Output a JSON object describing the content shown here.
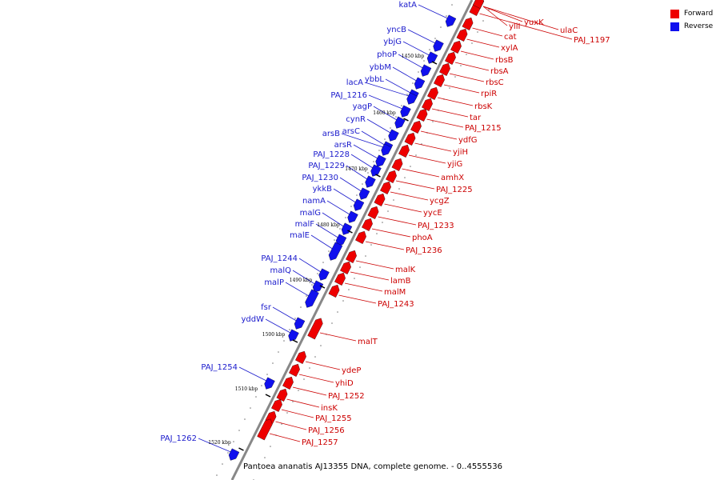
{
  "caption": "Pantoea ananatis AJ13355 DNA, complete genome. - 0..4555536",
  "legend": [
    {
      "label": "Forward",
      "color": "#ee0000"
    },
    {
      "label": "Reverse",
      "color": "#1010ee"
    }
  ],
  "colors": {
    "forward": "#ee0000",
    "reverse": "#1010ee",
    "backbone": "#888888",
    "label_forward": "#cc0000",
    "label_reverse": "#1a1acc"
  },
  "ticks": [
    "1450 kbp",
    "1460 kbp",
    "1470 kbp",
    "1480 kbp",
    "1490 kbp",
    "1500 kbp",
    "1510 kbp",
    "1520 kbp"
  ],
  "forward_genes": [
    "yuxK",
    "ulaC",
    "PAJ_1197",
    "yliI",
    "cat",
    "xylA",
    "rbsB",
    "rbsA",
    "rbsC",
    "rpiR",
    "rbsK",
    "tar",
    "PAJ_1215",
    "ydfG",
    "yjiH",
    "yjiG",
    "amhX",
    "PAJ_1225",
    "ycgZ",
    "yycE",
    "PAJ_1233",
    "phoA",
    "PAJ_1236",
    "malK",
    "lamB",
    "malM",
    "PAJ_1243",
    "malT",
    "ydeP",
    "yhiD",
    "PAJ_1252",
    "insK",
    "PAJ_1255",
    "PAJ_1256",
    "PAJ_1257"
  ],
  "reverse_genes": [
    "katA",
    "yncB",
    "ybjG",
    "phoP",
    "ybbM",
    "ybbL",
    "lacA",
    "PAJ_1216",
    "yagP",
    "cynR",
    "arsC",
    "arsB",
    "arsR",
    "PAJ_1228",
    "PAJ_1229",
    "PAJ_1230",
    "ykkB",
    "namA",
    "malG",
    "malF",
    "malE",
    "PAJ_1244",
    "malQ",
    "malP",
    "fsr",
    "yddW",
    "PAJ_1254",
    "PAJ_1262"
  ]
}
